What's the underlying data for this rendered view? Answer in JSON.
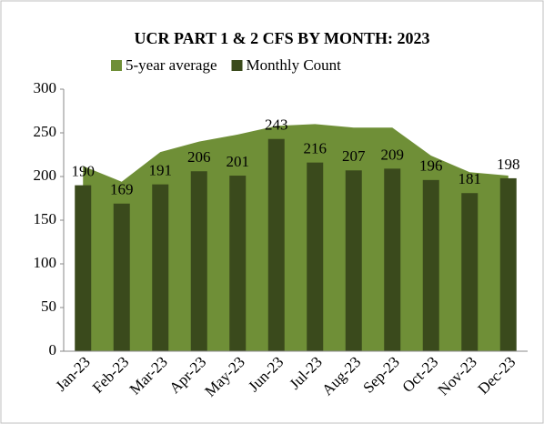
{
  "chart_data": {
    "type": "combo",
    "title": "UCR PART 1 & 2 CFS BY MONTH:  2023",
    "categories": [
      "Jan-23",
      "Feb-23",
      "Mar-23",
      "Apr-23",
      "May-23",
      "Jun-23",
      "Jul-23",
      "Aug-23",
      "Sep-23",
      "Oct-23",
      "Nov-23",
      "Dec-23"
    ],
    "series": [
      {
        "name": "5-year average",
        "type": "area",
        "color": "#6f8f37",
        "values": [
          212,
          194,
          228,
          240,
          248,
          258,
          260,
          256,
          256,
          224,
          205,
          201
        ]
      },
      {
        "name": "Monthly Count",
        "type": "bar",
        "color": "#3a4a1c",
        "values": [
          190,
          169,
          191,
          206,
          201,
          243,
          216,
          207,
          209,
          196,
          181,
          198
        ]
      }
    ],
    "ylim": [
      0,
      300
    ],
    "yticks": [
      0,
      50,
      100,
      150,
      200,
      250,
      300
    ],
    "grid": false,
    "legend": "top"
  }
}
